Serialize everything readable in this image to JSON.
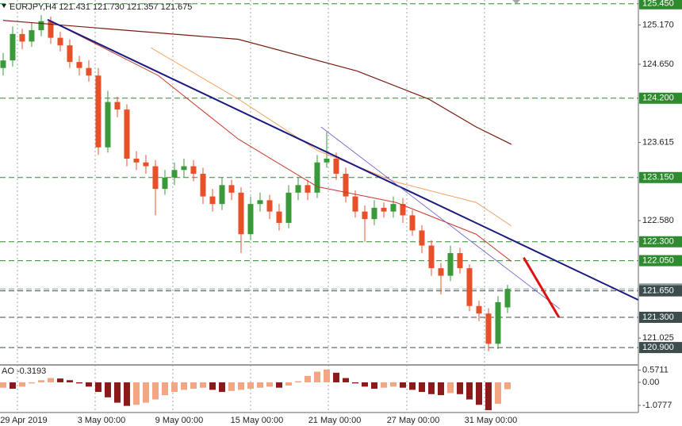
{
  "chart_data": {
    "type": "candlestick",
    "title": "EURJPY,H4  121.431 121.730 121.357 121.675",
    "xlim": [
      -0.33,
      66.75
    ],
    "xticks": [
      {
        "value": 1.5,
        "label": "29 Apr 2019"
      },
      {
        "value": 9.67,
        "label": "3 May 00:00"
      },
      {
        "value": 17.83,
        "label": "9 May 00:00"
      },
      {
        "value": 26,
        "label": "15 May 00:00"
      },
      {
        "value": 34.17,
        "label": "21 May 00:00"
      },
      {
        "value": 42.42,
        "label": "27 May 00:00"
      },
      {
        "value": 50.58,
        "label": "31 May 00:00"
      }
    ],
    "ylim": [
      120.67,
      125.5
    ],
    "yticks": [
      {
        "value": 125.17,
        "label": "125.170"
      },
      {
        "value": 124.65,
        "label": "124.650"
      },
      {
        "value": 123.615,
        "label": "123.615"
      },
      {
        "value": 122.58,
        "label": "122.580"
      },
      {
        "value": 121.025,
        "label": "121.025"
      }
    ],
    "levels": [
      {
        "value": 125.45,
        "label": "125.450",
        "color": "#2e8b2e"
      },
      {
        "value": 124.2,
        "label": "124.200",
        "color": "#2e8b2e"
      },
      {
        "value": 123.15,
        "label": "123.150",
        "color": "#2e8b2e"
      },
      {
        "value": 122.3,
        "label": "122.300",
        "color": "#2e8b2e"
      },
      {
        "value": 122.05,
        "label": "122.050",
        "color": "#2e8b2e"
      },
      {
        "value": 121.675,
        "label": "121.675",
        "color": "#8a9a9a"
      },
      {
        "value": 121.65,
        "label": "121.650",
        "color": "#3d4d4d"
      },
      {
        "value": 121.3,
        "label": "121.300",
        "color": "#3d4d4d"
      },
      {
        "value": 120.9,
        "label": "120.900",
        "color": "#3d4d4d"
      }
    ],
    "candles": {
      "open": [
        124.6,
        124.7,
        125.05,
        124.95,
        125.1,
        125.22,
        125.0,
        124.9,
        124.68,
        124.6,
        124.5,
        123.55,
        124.15,
        124.05,
        123.4,
        123.35,
        123.3,
        123.0,
        123.15,
        123.25,
        123.3,
        123.2,
        122.9,
        122.8,
        123.05,
        122.95,
        122.4,
        122.8,
        122.85,
        122.7,
        122.55,
        122.95,
        123.05,
        122.95,
        123.35,
        123.4,
        123.2,
        122.9,
        122.7,
        122.6,
        122.75,
        122.7,
        122.8,
        122.65,
        122.45,
        122.25,
        121.95,
        121.85,
        122.15,
        121.95,
        121.45,
        121.35,
        120.95,
        121.431
      ],
      "high": [
        124.8,
        125.15,
        125.12,
        125.2,
        125.3,
        125.28,
        125.08,
        124.98,
        124.76,
        124.7,
        124.6,
        124.3,
        124.22,
        124.12,
        123.5,
        123.45,
        123.38,
        123.25,
        123.35,
        123.4,
        123.38,
        123.28,
        123.0,
        123.15,
        123.12,
        123.02,
        122.9,
        122.95,
        122.92,
        122.8,
        123.05,
        123.15,
        123.12,
        123.45,
        123.75,
        123.48,
        123.28,
        122.98,
        122.78,
        122.85,
        122.82,
        122.9,
        122.88,
        122.72,
        122.52,
        122.32,
        122.02,
        122.25,
        122.22,
        122.0,
        121.52,
        121.42,
        121.58,
        121.73
      ],
      "low": [
        124.5,
        124.62,
        124.85,
        124.88,
        125.02,
        124.92,
        124.82,
        124.6,
        124.5,
        124.42,
        123.45,
        123.48,
        123.95,
        123.3,
        123.25,
        123.2,
        122.65,
        122.92,
        123.05,
        123.15,
        123.1,
        122.8,
        122.7,
        122.72,
        122.85,
        122.15,
        122.32,
        122.7,
        122.6,
        122.45,
        122.48,
        122.85,
        122.85,
        122.88,
        123.28,
        123.12,
        122.82,
        122.62,
        122.3,
        122.52,
        122.62,
        122.62,
        122.55,
        122.38,
        122.15,
        121.85,
        121.6,
        121.78,
        121.88,
        121.38,
        121.25,
        120.85,
        120.88,
        121.357
      ],
      "close": [
        124.7,
        125.05,
        124.95,
        125.1,
        125.22,
        125.0,
        124.9,
        124.68,
        124.6,
        124.5,
        123.55,
        124.15,
        124.05,
        123.4,
        123.35,
        123.3,
        123.0,
        123.15,
        123.25,
        123.3,
        123.2,
        122.9,
        122.8,
        123.05,
        122.95,
        122.4,
        122.8,
        122.85,
        122.7,
        122.55,
        122.95,
        123.05,
        122.95,
        123.35,
        123.4,
        123.2,
        122.9,
        122.7,
        122.6,
        122.75,
        122.7,
        122.8,
        122.65,
        122.45,
        122.25,
        121.95,
        121.85,
        122.15,
        121.95,
        121.45,
        121.35,
        120.95,
        121.5,
        121.675
      ],
      "up_color": "#3a9a3a",
      "down_color": "#e8502a"
    },
    "lines": [
      {
        "x": [
          0,
          24.7,
          37.2,
          44.7,
          49.7,
          53.4
        ],
        "values": [
          125.23,
          124.98,
          124.56,
          124.19,
          123.82,
          123.59
        ],
        "color": "#7a1a10",
        "width": 1.2
      },
      {
        "x": [
          5.5,
          16.3,
          24.7,
          33,
          41.3,
          49.7,
          53.4
        ],
        "values": [
          125.19,
          124.5,
          123.66,
          123.03,
          122.82,
          122.4,
          122.04
        ],
        "color": "#c8382a",
        "width": 1
      },
      {
        "x": [
          15.5,
          24.7,
          33,
          41.3,
          49.7,
          53.4
        ],
        "values": [
          124.87,
          124.19,
          123.51,
          123.09,
          122.82,
          122.51
        ],
        "color": "#f5a060",
        "width": 1
      },
      {
        "x": [
          4.67,
          66.75
        ],
        "values": [
          125.24,
          121.53
        ],
        "color": "#1a1a80",
        "width": 2
      },
      {
        "x": [
          33.4,
          58.5
        ],
        "values": [
          123.82,
          121.41
        ],
        "color": "#6a5acd",
        "width": 0.8
      },
      {
        "x": [
          54.7,
          58.4
        ],
        "values": [
          122.09,
          121.3
        ],
        "color": "#e01010",
        "width": 3
      }
    ],
    "indicator": {
      "type": "histogram",
      "label": "AO -0.3193",
      "ylim": [
        -1.41,
        0.74
      ],
      "yticks": [
        {
          "value": 0.5711,
          "label": "0.5711"
        },
        {
          "value": 0,
          "label": "0.00"
        },
        {
          "value": -1.0777,
          "label": "-1.0777"
        }
      ],
      "values": [
        -0.25,
        -0.3,
        -0.2,
        -0.05,
        0.1,
        0.2,
        0.18,
        0.1,
        -0.05,
        -0.2,
        -0.45,
        -0.7,
        -0.95,
        -1.1,
        -1.05,
        -0.95,
        -0.8,
        -0.6,
        -0.45,
        -0.35,
        -0.3,
        -0.25,
        -0.35,
        -0.45,
        -0.4,
        -0.35,
        -0.3,
        -0.25,
        -0.2,
        -0.25,
        -0.15,
        0.05,
        0.3,
        0.5,
        0.6,
        0.45,
        0.2,
        -0.05,
        -0.2,
        -0.3,
        -0.25,
        -0.2,
        -0.25,
        -0.35,
        -0.45,
        -0.55,
        -0.6,
        -0.5,
        -0.55,
        -0.8,
        -1.05,
        -1.3,
        -1.0,
        -0.3193
      ],
      "up_color": "#f4a582",
      "down_color": "#8b1a1a"
    }
  }
}
